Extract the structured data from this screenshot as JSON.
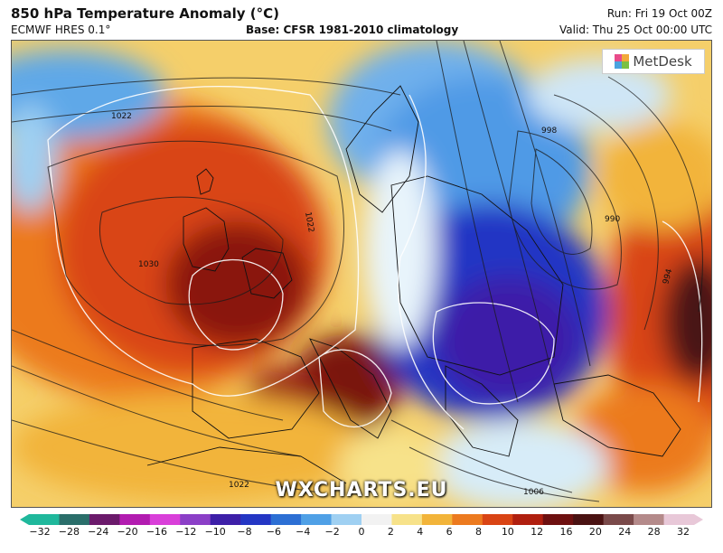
{
  "header": {
    "title": "850 hPa Temperature Anomaly (°C)",
    "model": "ECMWF HRES 0.1°",
    "base": "Base: CFSR 1981-2010 climatology",
    "run": "Run: Fri 19 Oct 00Z",
    "valid": "Valid: Thu 25 Oct 00:00 UTC"
  },
  "logo": {
    "text": "MetDesk",
    "icon": "metdesk-logo-icon"
  },
  "watermark": "WXCHARTS.EU",
  "isobar_labels": [
    "1022",
    "1030",
    "1022",
    "998",
    "990",
    "994",
    "1006",
    "1022"
  ],
  "colorbar": {
    "ticks": [
      "−32",
      "−28",
      "−24",
      "−20",
      "−16",
      "−12",
      "−10",
      "−8",
      "−6",
      "−4",
      "−2",
      "0",
      "2",
      "4",
      "6",
      "8",
      "10",
      "12",
      "16",
      "20",
      "24",
      "28",
      "32"
    ],
    "colors": [
      "#1fb89c",
      "#2a6e6a",
      "#6b1a6b",
      "#b21cb0",
      "#d93fd9",
      "#8b3fc7",
      "#3d1fa8",
      "#2436c4",
      "#2c6fd4",
      "#4fa0e6",
      "#9fd0f2",
      "#f2f2f2",
      "#f7e28a",
      "#f2b43a",
      "#ec7a1f",
      "#d94414",
      "#b01f0f",
      "#6e1010",
      "#4a1212",
      "#7a4a4a",
      "#b48a8a",
      "#e8c8d8"
    ]
  }
}
